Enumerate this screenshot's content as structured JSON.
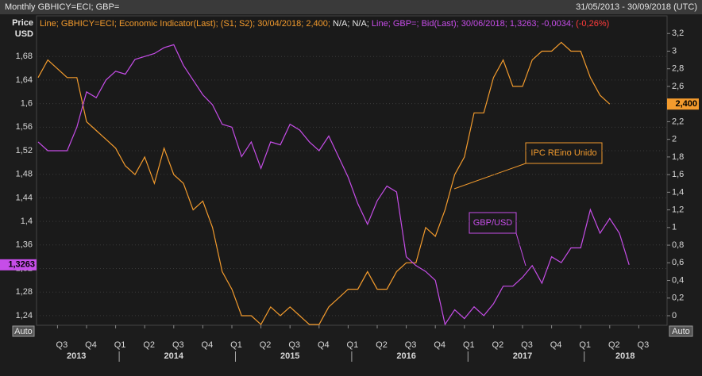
{
  "chart_data": {
    "type": "line",
    "title": "Monthly GBHICY=ECI; GBP=",
    "date_range": "31/05/2013 - 30/09/2018 (UTC)",
    "ylabel": [
      "Price",
      "USD"
    ],
    "scale_mode": "Auto",
    "xticks": [
      "Q3",
      "Q4",
      "Q1",
      "Q2",
      "Q3",
      "Q4",
      "Q1",
      "Q2",
      "Q3",
      "Q4",
      "Q1",
      "Q2",
      "Q3",
      "Q4",
      "Q1",
      "Q2",
      "Q3",
      "Q4",
      "Q1",
      "Q2",
      "Q3"
    ],
    "years": [
      "2013",
      "2014",
      "2015",
      "2016",
      "2017",
      "2018"
    ],
    "ylim": [
      1.2237,
      1.749
    ],
    "yticks": [
      {
        "value": 1.24,
        "label": "1,24"
      },
      {
        "value": 1.28,
        "label": "1,28"
      },
      {
        "value": 1.32,
        "label": "1,32"
      },
      {
        "value": 1.36,
        "label": "1,36"
      },
      {
        "value": 1.4,
        "label": "1,4"
      },
      {
        "value": 1.44,
        "label": "1,44"
      },
      {
        "value": 1.48,
        "label": "1,48"
      },
      {
        "value": 1.52,
        "label": "1,52"
      },
      {
        "value": 1.56,
        "label": "1,56"
      },
      {
        "value": 1.6,
        "label": "1,6"
      },
      {
        "value": 1.64,
        "label": "1,64"
      },
      {
        "value": 1.68,
        "label": "1,68"
      }
    ],
    "y2lim": [
      -0.108,
      3.4
    ],
    "y2ticks": [
      0,
      {
        "value": 0.2,
        "label": "0,2"
      },
      {
        "value": 0.4,
        "label": "0,4"
      },
      {
        "value": 0.6,
        "label": "0,6"
      },
      {
        "value": 0.8,
        "label": "0,8"
      },
      1,
      {
        "value": 1.2,
        "label": "1,2"
      },
      {
        "value": 1.4,
        "label": "1,4"
      },
      {
        "value": 1.6,
        "label": "1,6"
      },
      {
        "value": 1.8,
        "label": "1,8"
      },
      2,
      {
        "value": 2.2,
        "label": "2,2"
      },
      {
        "value": 2.4,
        "label": "2,4"
      },
      {
        "value": 2.6,
        "label": "2,6"
      },
      {
        "value": 2.8,
        "label": "2,8"
      },
      3,
      {
        "value": 3.2,
        "label": "3,2"
      }
    ],
    "grid": true,
    "series": [
      {
        "name": "IPC REino Unido",
        "color": "#f39b2d",
        "axis": "y2",
        "legend": [
          "Line; GBHICY=ECI; Economic Indicator(Last); (S1; S2); 30/04/2018; 2,400;",
          "N/A; N/A;"
        ],
        "last_label": "2,400",
        "values": [
          2.7,
          2.9,
          2.8,
          2.7,
          2.7,
          2.2,
          2.1,
          2.0,
          1.9,
          1.7,
          1.6,
          1.8,
          1.5,
          1.9,
          1.6,
          1.5,
          1.2,
          1.3,
          1.0,
          0.5,
          0.3,
          0.0,
          0.0,
          -0.1,
          0.1,
          0.0,
          0.1,
          0.0,
          -0.1,
          -0.1,
          0.1,
          0.2,
          0.3,
          0.3,
          0.5,
          0.3,
          0.3,
          0.5,
          0.6,
          0.6,
          1.0,
          0.9,
          1.2,
          1.6,
          1.8,
          2.3,
          2.3,
          2.7,
          2.9,
          2.6,
          2.6,
          2.9,
          3.0,
          3.0,
          3.1,
          3.0,
          3.0,
          2.7,
          2.5,
          2.4,
          null,
          null
        ]
      },
      {
        "name": "GBP/USD",
        "color": "#c64de8",
        "legend": [
          "Line; GBP=; Bid(Last); 30/06/2018; 1,3263; -0,0034;",
          "(-0,26%)"
        ],
        "last_label": "1,3263",
        "values": [
          1.535,
          1.52,
          1.52,
          1.52,
          1.56,
          1.62,
          1.61,
          1.64,
          1.655,
          1.65,
          1.675,
          1.68,
          1.685,
          1.695,
          1.7,
          1.665,
          1.64,
          1.615,
          1.598,
          1.565,
          1.56,
          1.51,
          1.535,
          1.49,
          1.535,
          1.53,
          1.565,
          1.555,
          1.535,
          1.52,
          1.545,
          1.51,
          1.475,
          1.43,
          1.395,
          1.435,
          1.46,
          1.45,
          1.34,
          1.325,
          1.315,
          1.3,
          1.225,
          1.25,
          1.235,
          1.255,
          1.24,
          1.26,
          1.29,
          1.29,
          1.305,
          1.325,
          1.295,
          1.34,
          1.33,
          1.355,
          1.355,
          1.42,
          1.38,
          1.405,
          1.38,
          1.3263
        ]
      }
    ]
  }
}
